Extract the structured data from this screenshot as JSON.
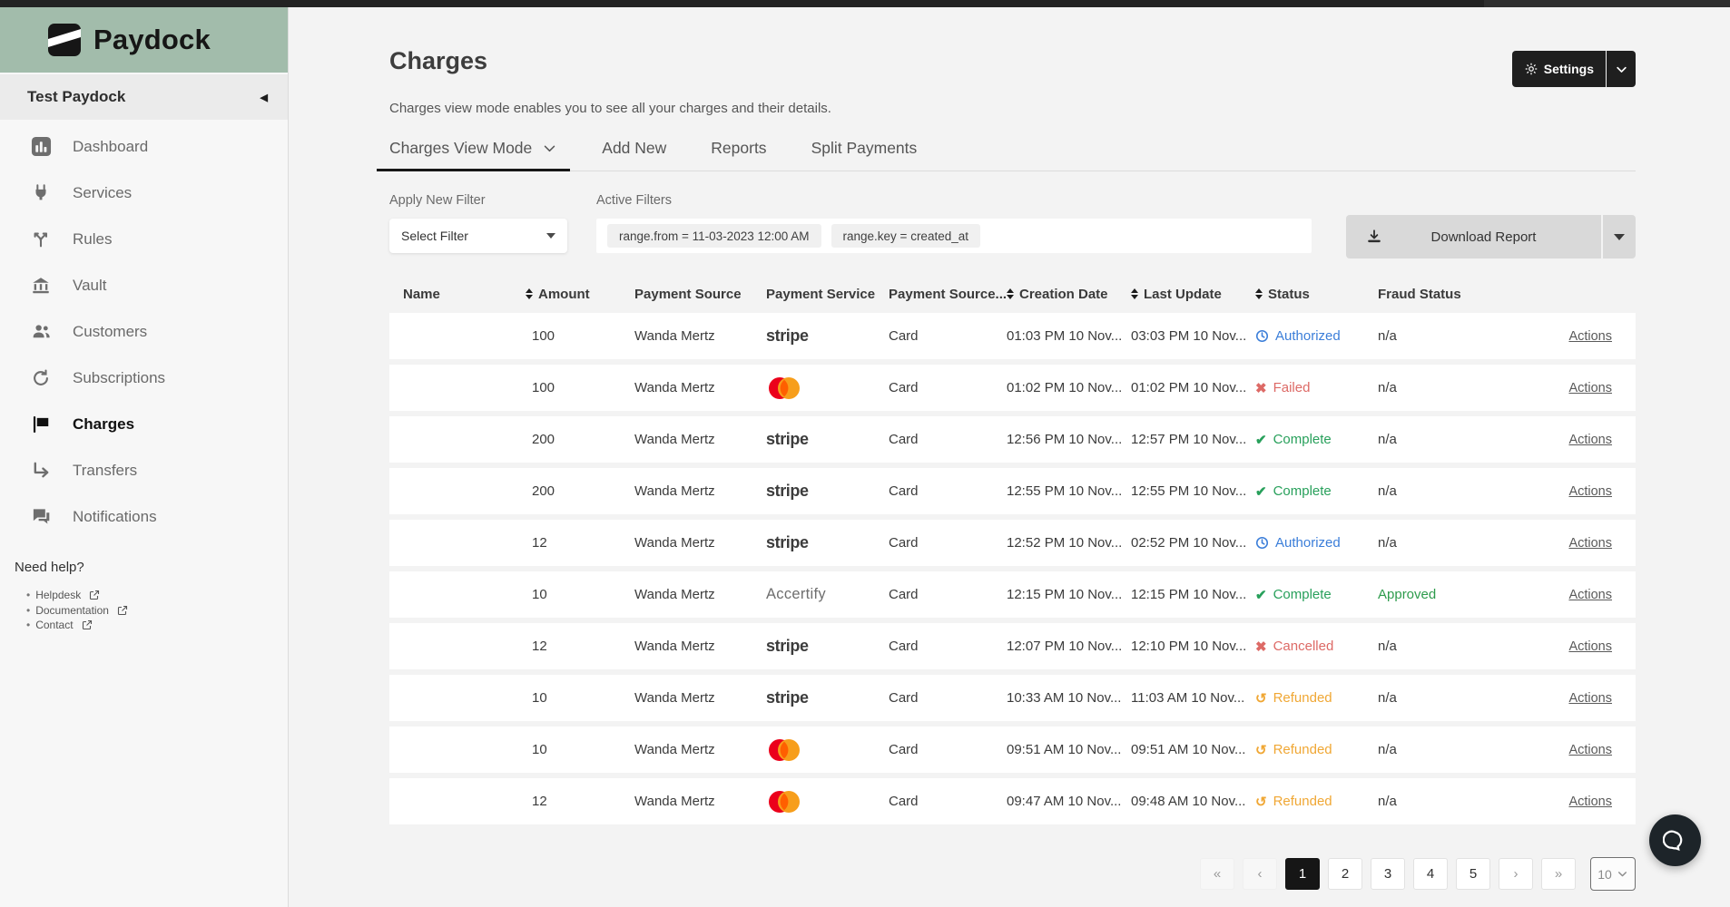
{
  "sidebar": {
    "brand": "Paydock",
    "account": {
      "label": "Test Paydock"
    },
    "items": [
      {
        "label": "Dashboard",
        "icon": "dashboard"
      },
      {
        "label": "Services",
        "icon": "plug"
      },
      {
        "label": "Rules",
        "icon": "branch"
      },
      {
        "label": "Vault",
        "icon": "bank"
      },
      {
        "label": "Customers",
        "icon": "people"
      },
      {
        "label": "Subscriptions",
        "icon": "refresh"
      },
      {
        "label": "Charges",
        "icon": "flag",
        "active": true
      },
      {
        "label": "Transfers",
        "icon": "transfer"
      },
      {
        "label": "Notifications",
        "icon": "chat"
      }
    ],
    "help": {
      "heading": "Need help?",
      "links": [
        "Helpdesk",
        "Documentation",
        "Contact"
      ]
    }
  },
  "header": {
    "title": "Charges",
    "subtitle": "Charges view mode enables you to see all your charges and their details.",
    "settings_label": "Settings"
  },
  "tabs": [
    {
      "label": "Charges View Mode",
      "active": true,
      "has_dropdown": true
    },
    {
      "label": "Add New"
    },
    {
      "label": "Reports"
    },
    {
      "label": "Split Payments"
    }
  ],
  "filters": {
    "apply_label": "Apply New Filter",
    "select_value": "Select Filter",
    "active_label": "Active Filters",
    "chips": [
      "range.from = 11-03-2023 12:00 AM",
      "range.key = created_at"
    ],
    "download_label": "Download Report"
  },
  "table": {
    "columns": [
      "Name",
      "Amount",
      "Payment Source",
      "Payment Service",
      "Payment Source...",
      "Creation Date",
      "Last Update",
      "Status",
      "Fraud Status"
    ],
    "sortable": [
      false,
      true,
      false,
      false,
      false,
      true,
      true,
      true,
      false
    ],
    "rows": [
      {
        "name": "",
        "amount": "100",
        "source": "Wanda Mertz",
        "service": "stripe",
        "source_type": "Card",
        "created": "01:03 PM 10 Nov...",
        "updated": "03:03 PM 10 Nov...",
        "status": "Authorized",
        "fraud": "n/a",
        "actions": "Actions"
      },
      {
        "name": "",
        "amount": "100",
        "source": "Wanda Mertz",
        "service": "mastercard",
        "source_type": "Card",
        "created": "01:02 PM 10 Nov...",
        "updated": "01:02 PM 10 Nov...",
        "status": "Failed",
        "fraud": "n/a",
        "actions": "Actions"
      },
      {
        "name": "",
        "amount": "200",
        "source": "Wanda Mertz",
        "service": "stripe",
        "source_type": "Card",
        "created": "12:56 PM 10 Nov...",
        "updated": "12:57 PM 10 Nov...",
        "status": "Complete",
        "fraud": "n/a",
        "actions": "Actions"
      },
      {
        "name": "",
        "amount": "200",
        "source": "Wanda Mertz",
        "service": "stripe",
        "source_type": "Card",
        "created": "12:55 PM 10 Nov...",
        "updated": "12:55 PM 10 Nov...",
        "status": "Complete",
        "fraud": "n/a",
        "actions": "Actions"
      },
      {
        "name": "",
        "amount": "12",
        "source": "Wanda Mertz",
        "service": "stripe",
        "source_type": "Card",
        "created": "12:52 PM 10 Nov...",
        "updated": "02:52 PM 10 Nov...",
        "status": "Authorized",
        "fraud": "n/a",
        "actions": "Actions"
      },
      {
        "name": "",
        "amount": "10",
        "source": "Wanda Mertz",
        "service": "accertify",
        "source_type": "Card",
        "created": "12:15 PM 10 Nov...",
        "updated": "12:15 PM 10 Nov...",
        "status": "Complete",
        "fraud": "Approved",
        "actions": "Actions"
      },
      {
        "name": "",
        "amount": "12",
        "source": "Wanda Mertz",
        "service": "stripe",
        "source_type": "Card",
        "created": "12:07 PM 10 Nov...",
        "updated": "12:10 PM 10 Nov...",
        "status": "Cancelled",
        "fraud": "n/a",
        "actions": "Actions"
      },
      {
        "name": "",
        "amount": "10",
        "source": "Wanda Mertz",
        "service": "stripe",
        "source_type": "Card",
        "created": "10:33 AM 10 Nov...",
        "updated": "11:03 AM 10 Nov...",
        "status": "Refunded",
        "fraud": "n/a",
        "actions": "Actions"
      },
      {
        "name": "",
        "amount": "10",
        "source": "Wanda Mertz",
        "service": "mastercard",
        "source_type": "Card",
        "created": "09:51 AM 10 Nov...",
        "updated": "09:51 AM 10 Nov...",
        "status": "Refunded",
        "fraud": "n/a",
        "actions": "Actions"
      },
      {
        "name": "",
        "amount": "12",
        "source": "Wanda Mertz",
        "service": "mastercard",
        "source_type": "Card",
        "created": "09:47 AM 10 Nov...",
        "updated": "09:48 AM 10 Nov...",
        "status": "Refunded",
        "fraud": "n/a",
        "actions": "Actions"
      }
    ]
  },
  "pagination": {
    "buttons": [
      "«",
      "‹",
      "1",
      "2",
      "3",
      "4",
      "5",
      "›",
      "»"
    ],
    "disabled": [
      "«",
      "‹"
    ],
    "active": "1",
    "page_size": "10"
  },
  "colors": {
    "brand_green": "#a2bcab",
    "status_authorized": "#3b7ed9",
    "status_failed": "#dd6a66",
    "status_complete": "#28a05b",
    "status_refunded": "#f0a734",
    "fraud_approved": "#2d9b4c"
  }
}
